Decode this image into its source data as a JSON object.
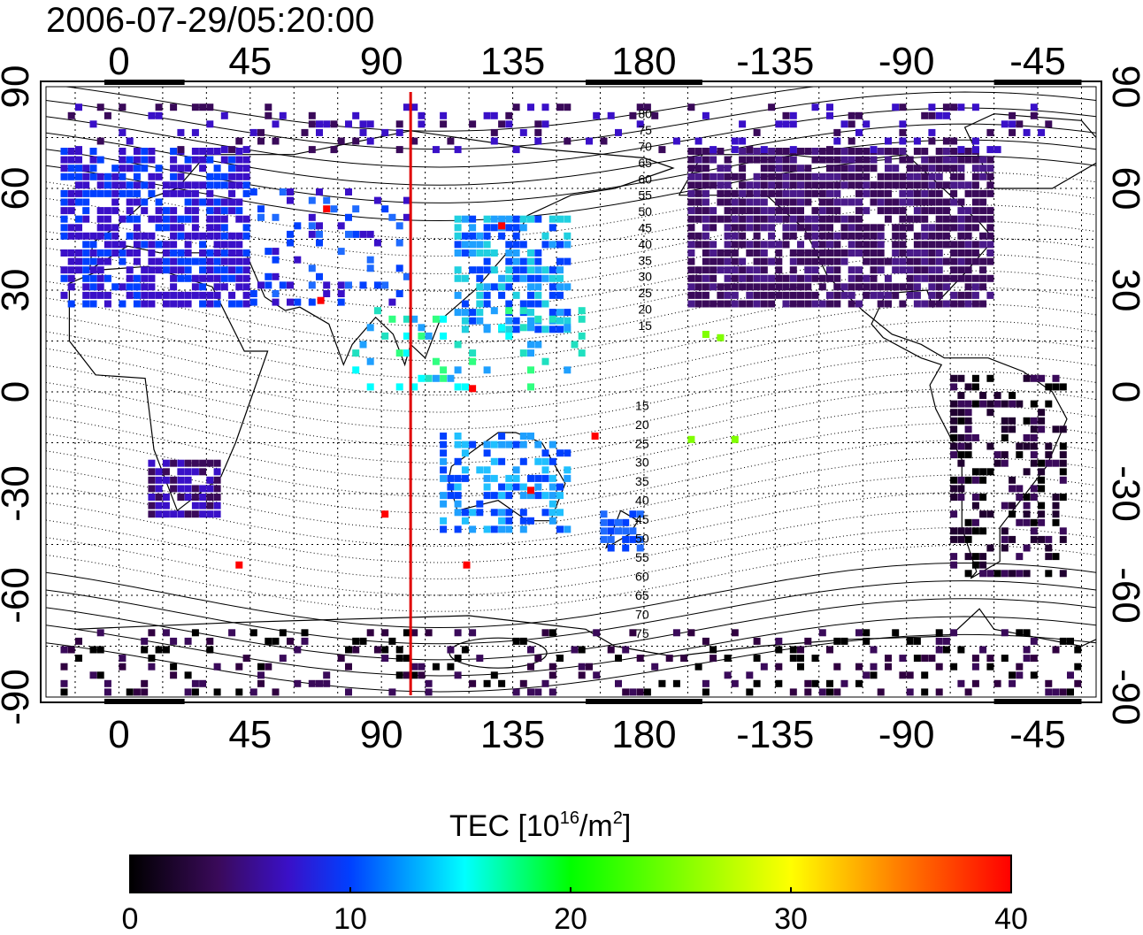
{
  "title": "2006-07-29/05:20:00",
  "map": {
    "lon_ticks": [
      {
        "label": "0",
        "lon": 0
      },
      {
        "label": "45",
        "lon": 45
      },
      {
        "label": "90",
        "lon": 90
      },
      {
        "label": "135",
        "lon": 135
      },
      {
        "label": "180",
        "lon": 180
      },
      {
        "label": "-135",
        "lon": 225
      },
      {
        "label": "-90",
        "lon": 270
      },
      {
        "label": "-45",
        "lon": 315
      }
    ],
    "lat_ticks": [
      {
        "label": "90",
        "lat": 90
      },
      {
        "label": "60",
        "lat": 60
      },
      {
        "label": "30",
        "lat": 30
      },
      {
        "label": "0",
        "lat": 0
      },
      {
        "label": "-30",
        "lat": -30
      },
      {
        "label": "-60",
        "lat": -60
      },
      {
        "label": "-90",
        "lat": -90
      }
    ],
    "lon_range": [
      -25,
      335
    ],
    "lat_range": [
      -90,
      90
    ],
    "grid": true,
    "marker_lon": 100,
    "marker_color": "#e00000",
    "contour_labels_north": [
      "80",
      "75",
      "70",
      "65",
      "60",
      "55",
      "50",
      "45",
      "40",
      "35",
      "30",
      "25",
      "20",
      "15"
    ],
    "contour_labels_south": [
      "15",
      "20",
      "25",
      "30",
      "35",
      "40",
      "45",
      "50",
      "55",
      "60",
      "65",
      "70",
      "75"
    ]
  },
  "colorbar": {
    "title_main": "TEC  [10",
    "title_exp": "16",
    "title_mid": "/m",
    "title_exp2": "2",
    "title_end": "]",
    "ticks": [
      "0",
      "10",
      "20",
      "30",
      "40"
    ],
    "range": [
      0,
      40
    ],
    "colors": [
      "#000000",
      "#3a0a5a",
      "#3a10c8",
      "#0040ff",
      "#00ffff",
      "#00ff00",
      "#ffff00",
      "#ff8000",
      "#ff0000"
    ]
  }
}
